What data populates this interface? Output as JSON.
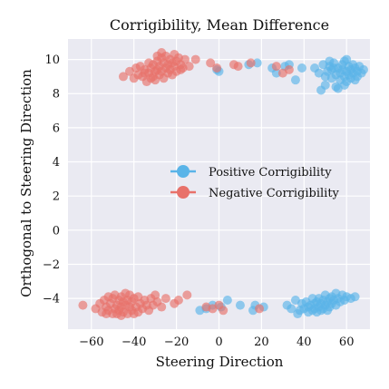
{
  "chart_data": {
    "type": "scatter",
    "title": "Corrigibility, Mean Difference",
    "xlabel": "Steering Direction",
    "ylabel": "Orthogonal to Steering Direction",
    "xlim": [
      -71,
      71
    ],
    "ylim": [
      -5.8,
      11.2
    ],
    "xticks": [
      -60,
      -40,
      -20,
      0,
      20,
      40,
      60
    ],
    "xtick_labels": [
      "−60",
      "−40",
      "−20",
      "0",
      "20",
      "40",
      "60"
    ],
    "yticks": [
      -4,
      -2,
      0,
      2,
      4,
      6,
      8,
      10
    ],
    "ytick_labels": [
      "−4",
      "−2",
      "0",
      "2",
      "4",
      "6",
      "8",
      "10"
    ],
    "grid": true,
    "background": "#eaeaf2",
    "legend_position": "center-right",
    "series": [
      {
        "name": "Positive Corrigibility",
        "color": "#5ab4e8",
        "points": [
          [
            -1,
            9.4
          ],
          [
            0,
            9.3
          ],
          [
            14,
            9.7
          ],
          [
            18,
            9.8
          ],
          [
            25,
            9.5
          ],
          [
            27,
            9.2
          ],
          [
            31,
            9.6
          ],
          [
            33,
            9.7
          ],
          [
            36,
            8.8
          ],
          [
            39,
            9.5
          ],
          [
            45,
            9.5
          ],
          [
            47,
            9.2
          ],
          [
            48,
            8.2
          ],
          [
            49,
            9.7
          ],
          [
            50,
            9.0
          ],
          [
            50,
            8.5
          ],
          [
            51,
            9.3
          ],
          [
            52,
            9.6
          ],
          [
            53,
            8.9
          ],
          [
            53,
            9.4
          ],
          [
            54,
            9.8
          ],
          [
            55,
            9.1
          ],
          [
            55,
            8.4
          ],
          [
            56,
            9.5
          ],
          [
            57,
            9.2
          ],
          [
            57,
            8.8
          ],
          [
            58,
            9.7
          ],
          [
            58,
            9.4
          ],
          [
            59,
            9.0
          ],
          [
            59,
            9.9
          ],
          [
            60,
            9.3
          ],
          [
            60,
            8.7
          ],
          [
            61,
            9.6
          ],
          [
            61,
            9.1
          ],
          [
            62,
            9.4
          ],
          [
            62,
            8.9
          ],
          [
            63,
            9.7
          ],
          [
            63,
            9.2
          ],
          [
            64,
            9.5
          ],
          [
            64,
            8.8
          ],
          [
            65,
            9.3
          ],
          [
            65,
            9.0
          ],
          [
            66,
            9.6
          ],
          [
            67,
            9.2
          ],
          [
            68,
            9.4
          ],
          [
            56,
            8.3
          ],
          [
            59,
            8.5
          ],
          [
            52,
            9.9
          ],
          [
            60,
            10.0
          ],
          [
            54,
            9.5
          ],
          [
            -9,
            -4.7
          ],
          [
            -6,
            -4.6
          ],
          [
            -3,
            -4.4
          ],
          [
            1,
            -4.5
          ],
          [
            4,
            -4.1
          ],
          [
            10,
            -4.4
          ],
          [
            16,
            -4.7
          ],
          [
            17,
            -4.4
          ],
          [
            21,
            -4.5
          ],
          [
            32,
            -4.4
          ],
          [
            34,
            -4.6
          ],
          [
            36,
            -4.1
          ],
          [
            38,
            -4.7
          ],
          [
            39,
            -4.3
          ],
          [
            40,
            -4.6
          ],
          [
            41,
            -4.2
          ],
          [
            42,
            -4.5
          ],
          [
            42,
            -4.8
          ],
          [
            43,
            -4.4
          ],
          [
            44,
            -4.7
          ],
          [
            44,
            -4.0
          ],
          [
            45,
            -4.3
          ],
          [
            45,
            -4.6
          ],
          [
            46,
            -4.8
          ],
          [
            46,
            -4.2
          ],
          [
            47,
            -4.5
          ],
          [
            47,
            -4.0
          ],
          [
            48,
            -4.7
          ],
          [
            48,
            -4.3
          ],
          [
            49,
            -4.1
          ],
          [
            49,
            -4.6
          ],
          [
            50,
            -4.4
          ],
          [
            50,
            -3.8
          ],
          [
            51,
            -4.2
          ],
          [
            51,
            -4.7
          ],
          [
            52,
            -4.0
          ],
          [
            52,
            -4.5
          ],
          [
            53,
            -3.9
          ],
          [
            53,
            -4.3
          ],
          [
            54,
            -4.1
          ],
          [
            55,
            -4.4
          ],
          [
            55,
            -3.7
          ],
          [
            56,
            -4.0
          ],
          [
            57,
            -4.2
          ],
          [
            58,
            -3.8
          ],
          [
            59,
            -4.1
          ],
          [
            60,
            -3.9
          ],
          [
            62,
            -4.0
          ],
          [
            64,
            -3.9
          ],
          [
            37,
            -4.9
          ]
        ]
      },
      {
        "name": "Negative Corrigibility",
        "color": "#e8716a",
        "points": [
          [
            -45,
            9.0
          ],
          [
            -42,
            9.3
          ],
          [
            -40,
            8.9
          ],
          [
            -39,
            9.5
          ],
          [
            -38,
            9.1
          ],
          [
            -37,
            9.6
          ],
          [
            -36,
            9.0
          ],
          [
            -35,
            9.4
          ],
          [
            -34,
            8.7
          ],
          [
            -33,
            9.8
          ],
          [
            -33,
            9.2
          ],
          [
            -32,
            9.5
          ],
          [
            -31,
            9.0
          ],
          [
            -31,
            9.7
          ],
          [
            -30,
            9.3
          ],
          [
            -30,
            8.8
          ],
          [
            -29,
            9.9
          ],
          [
            -29,
            9.4
          ],
          [
            -28,
            9.1
          ],
          [
            -28,
            9.6
          ],
          [
            -27,
            10.1
          ],
          [
            -27,
            9.3
          ],
          [
            -26,
            9.8
          ],
          [
            -26,
            8.9
          ],
          [
            -25,
            9.5
          ],
          [
            -25,
            10.2
          ],
          [
            -24,
            9.2
          ],
          [
            -24,
            9.7
          ],
          [
            -23,
            10.0
          ],
          [
            -23,
            9.4
          ],
          [
            -22,
            9.8
          ],
          [
            -22,
            9.1
          ],
          [
            -21,
            10.3
          ],
          [
            -21,
            9.6
          ],
          [
            -20,
            9.9
          ],
          [
            -20,
            9.3
          ],
          [
            -19,
            10.1
          ],
          [
            -18,
            9.7
          ],
          [
            -17,
            9.5
          ],
          [
            -16,
            10.0
          ],
          [
            -14,
            9.6
          ],
          [
            -11,
            10.0
          ],
          [
            -4,
            9.8
          ],
          [
            -1,
            9.5
          ],
          [
            7,
            9.7
          ],
          [
            9,
            9.6
          ],
          [
            15,
            9.8
          ],
          [
            27,
            9.6
          ],
          [
            30,
            9.2
          ],
          [
            33,
            9.4
          ],
          [
            -27,
            10.4
          ],
          [
            -29,
            10.2
          ],
          [
            -32,
            8.9
          ],
          [
            -35,
            9.2
          ],
          [
            -18,
            9.4
          ],
          [
            -64,
            -4.4
          ],
          [
            -58,
            -4.6
          ],
          [
            -56,
            -4.3
          ],
          [
            -55,
            -4.8
          ],
          [
            -54,
            -4.1
          ],
          [
            -53,
            -4.5
          ],
          [
            -52,
            -3.9
          ],
          [
            -52,
            -4.7
          ],
          [
            -51,
            -4.3
          ],
          [
            -50,
            -4.9
          ],
          [
            -50,
            -4.0
          ],
          [
            -49,
            -4.6
          ],
          [
            -49,
            -3.8
          ],
          [
            -48,
            -4.4
          ],
          [
            -48,
            -4.9
          ],
          [
            -47,
            -4.1
          ],
          [
            -47,
            -4.7
          ],
          [
            -46,
            -3.9
          ],
          [
            -46,
            -4.5
          ],
          [
            -45,
            -4.2
          ],
          [
            -45,
            -4.8
          ],
          [
            -44,
            -3.7
          ],
          [
            -44,
            -4.4
          ],
          [
            -43,
            -4.1
          ],
          [
            -43,
            -4.9
          ],
          [
            -42,
            -3.8
          ],
          [
            -42,
            -4.5
          ],
          [
            -41,
            -4.2
          ],
          [
            -41,
            -4.7
          ],
          [
            -40,
            -4.0
          ],
          [
            -39,
            -4.5
          ],
          [
            -38,
            -3.9
          ],
          [
            -38,
            -4.8
          ],
          [
            -37,
            -4.3
          ],
          [
            -36,
            -4.6
          ],
          [
            -35,
            -4.1
          ],
          [
            -34,
            -4.4
          ],
          [
            -33,
            -4.7
          ],
          [
            -32,
            -4.0
          ],
          [
            -31,
            -4.4
          ],
          [
            -30,
            -3.8
          ],
          [
            -29,
            -4.2
          ],
          [
            -27,
            -4.5
          ],
          [
            -25,
            -4.0
          ],
          [
            -21,
            -4.3
          ],
          [
            -19,
            -4.1
          ],
          [
            -15,
            -3.8
          ],
          [
            -6,
            -4.5
          ],
          [
            -3,
            -4.6
          ],
          [
            0,
            -4.4
          ],
          [
            2,
            -4.7
          ],
          [
            19,
            -4.6
          ],
          [
            -46,
            -5.0
          ],
          [
            -40,
            -4.9
          ],
          [
            -53,
            -4.9
          ]
        ]
      }
    ]
  }
}
